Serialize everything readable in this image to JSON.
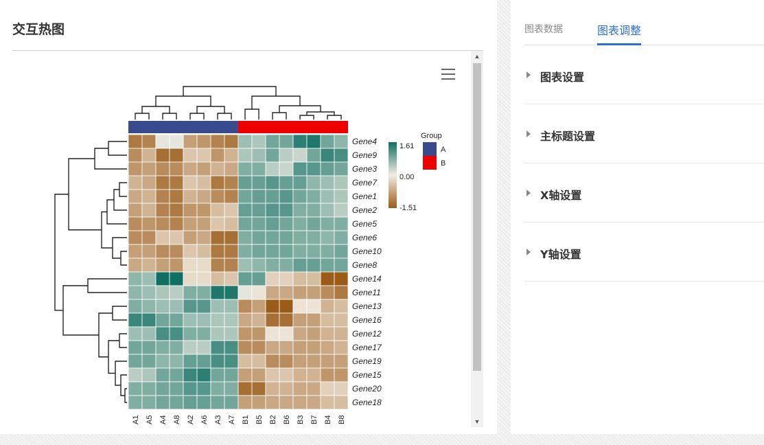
{
  "page": {
    "title": "交互热图"
  },
  "right_panel": {
    "tabs": [
      {
        "label": "图表数据",
        "active": false
      },
      {
        "label": "图表调整",
        "active": true
      }
    ],
    "sections": [
      {
        "label": "图表设置"
      },
      {
        "label": "主标题设置"
      },
      {
        "label": "X轴设置"
      },
      {
        "label": "Y轴设置"
      }
    ]
  },
  "colors": {
    "accent": "#2b6bdb",
    "low": "#9a5b16",
    "mid": "#f2ede4",
    "high": "#0f6e62",
    "group_A": "#3a4a8f",
    "group_B": "#ee0000"
  },
  "chart_data": {
    "type": "heatmap",
    "columns": [
      "A1",
      "A5",
      "A4",
      "A8",
      "A2",
      "A6",
      "A3",
      "A7",
      "B1",
      "B5",
      "B2",
      "B6",
      "B3",
      "B7",
      "B4",
      "B8"
    ],
    "column_groups": [
      "A",
      "A",
      "A",
      "A",
      "A",
      "A",
      "A",
      "A",
      "B",
      "B",
      "B",
      "B",
      "B",
      "B",
      "B",
      "B"
    ],
    "rows": [
      "Gene4",
      "Gene9",
      "Gene3",
      "Gene7",
      "Gene1",
      "Gene2",
      "Gene5",
      "Gene6",
      "Gene10",
      "Gene8",
      "Gene14",
      "Gene11",
      "Gene13",
      "Gene16",
      "Gene12",
      "Gene17",
      "Gene19",
      "Gene15",
      "Gene20",
      "Gene18"
    ],
    "values": [
      [
        -1.2,
        -1.1,
        0.1,
        0.1,
        -0.8,
        -0.9,
        -1.1,
        -1.2,
        0.6,
        0.5,
        0.9,
        0.9,
        1.4,
        1.5,
        0.9,
        0.7
      ],
      [
        -1.0,
        -0.6,
        -1.3,
        -1.3,
        -0.4,
        -0.4,
        -0.9,
        -0.6,
        0.5,
        0.6,
        0.9,
        0.4,
        0.3,
        0.9,
        1.3,
        1.2
      ],
      [
        -0.9,
        -0.8,
        -1.0,
        -1.0,
        -0.7,
        -0.8,
        -0.6,
        -0.7,
        0.8,
        0.8,
        0.4,
        0.3,
        1.1,
        1.1,
        1.0,
        0.9
      ],
      [
        -0.6,
        -0.7,
        -1.2,
        -1.2,
        -0.4,
        -0.5,
        -1.2,
        -1.1,
        1.0,
        1.0,
        1.1,
        1.0,
        1.0,
        0.7,
        0.6,
        0.5
      ],
      [
        -0.7,
        -0.6,
        -1.1,
        -1.2,
        -0.6,
        -0.7,
        -1.0,
        -1.1,
        0.9,
        1.0,
        1.0,
        1.1,
        0.9,
        0.8,
        0.6,
        0.5
      ],
      [
        -0.8,
        -0.6,
        -1.1,
        -1.2,
        -0.9,
        -0.9,
        -0.5,
        -0.4,
        1.0,
        1.0,
        1.1,
        1.1,
        0.8,
        0.8,
        0.6,
        0.4
      ],
      [
        -1.0,
        -0.9,
        -1.0,
        -1.1,
        -0.8,
        -0.8,
        -0.4,
        -0.5,
        0.9,
        0.9,
        1.0,
        0.9,
        0.8,
        0.9,
        0.8,
        0.8
      ],
      [
        -1.0,
        -1.0,
        -0.4,
        -0.4,
        -0.8,
        -0.7,
        -1.3,
        -1.3,
        0.8,
        0.9,
        0.9,
        0.9,
        0.8,
        0.8,
        0.7,
        0.8
      ],
      [
        -0.8,
        -0.8,
        -1.0,
        -1.0,
        -0.4,
        -0.5,
        -1.2,
        -1.2,
        0.8,
        0.9,
        0.9,
        0.9,
        0.8,
        0.8,
        0.8,
        0.9
      ],
      [
        -0.7,
        -0.6,
        -0.8,
        -0.9,
        -0.2,
        -0.2,
        -1.1,
        -1.1,
        0.6,
        0.7,
        0.8,
        0.8,
        1.0,
        1.0,
        0.9,
        0.9
      ],
      [
        0.7,
        0.6,
        1.6,
        1.6,
        -0.2,
        -0.2,
        -0.5,
        -0.4,
        1.0,
        1.0,
        -0.3,
        -0.3,
        -0.5,
        -0.5,
        -1.5,
        -1.5
      ],
      [
        0.7,
        0.6,
        0.5,
        0.4,
        0.8,
        0.8,
        1.5,
        1.5,
        0.1,
        -0.1,
        -0.7,
        -0.7,
        -0.8,
        -0.8,
        -1.0,
        -1.2
      ],
      [
        0.8,
        0.7,
        0.6,
        0.6,
        1.1,
        1.1,
        0.6,
        0.6,
        -1.0,
        -0.8,
        -1.5,
        -1.5,
        -0.1,
        -0.1,
        -0.6,
        -0.5
      ],
      [
        1.3,
        1.3,
        0.9,
        0.9,
        0.6,
        0.6,
        0.5,
        0.5,
        -0.7,
        -0.6,
        -1.3,
        -1.3,
        -0.8,
        -0.8,
        -0.5,
        -0.5
      ],
      [
        0.6,
        0.6,
        1.2,
        1.2,
        0.8,
        0.8,
        0.5,
        0.5,
        -0.9,
        -0.9,
        -0.1,
        -0.1,
        -0.7,
        -0.8,
        -0.6,
        -0.6
      ],
      [
        0.9,
        0.9,
        0.8,
        0.8,
        0.4,
        0.4,
        1.2,
        1.2,
        -1.0,
        -1.0,
        -0.7,
        -0.7,
        -0.8,
        -0.8,
        -0.7,
        -0.6
      ],
      [
        0.9,
        0.9,
        0.7,
        0.7,
        1.0,
        1.0,
        1.2,
        1.2,
        -0.5,
        -0.5,
        -1.0,
        -1.0,
        -0.8,
        -0.8,
        -0.8,
        -0.8
      ],
      [
        0.4,
        0.5,
        0.9,
        0.9,
        1.3,
        1.4,
        0.9,
        0.9,
        -0.8,
        -0.8,
        -0.4,
        -0.4,
        -0.6,
        -0.6,
        -0.9,
        -0.9
      ],
      [
        0.8,
        0.8,
        0.9,
        0.9,
        1.1,
        1.1,
        0.8,
        0.8,
        -1.3,
        -1.3,
        -0.6,
        -0.6,
        -0.7,
        -0.7,
        -0.3,
        -0.3
      ],
      [
        0.8,
        0.8,
        0.9,
        0.9,
        1.0,
        1.0,
        0.9,
        0.9,
        -0.8,
        -0.8,
        -0.7,
        -0.7,
        -0.7,
        -0.7,
        -0.5,
        -0.5
      ]
    ],
    "color_scale": {
      "min": -1.51,
      "mid": 0.0,
      "max": 1.61,
      "labels": [
        "1.61",
        "0.00",
        "-1.51"
      ]
    },
    "group_legend": {
      "title": "Group",
      "items": [
        {
          "name": "A",
          "color": "#3a4a8f"
        },
        {
          "name": "B",
          "color": "#ee0000"
        }
      ]
    },
    "clustering": {
      "rows": true,
      "columns": true
    }
  }
}
